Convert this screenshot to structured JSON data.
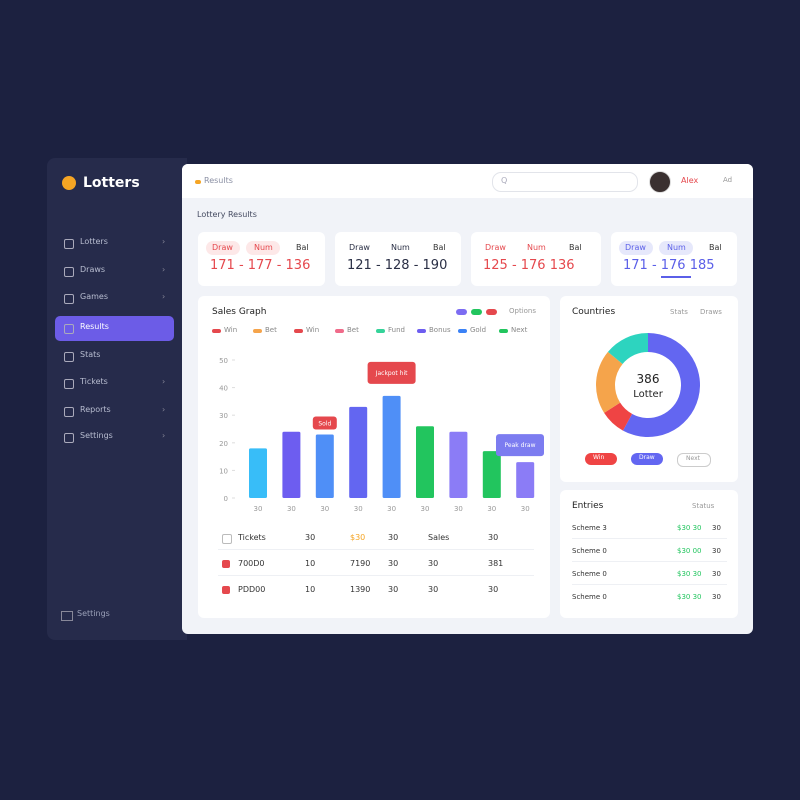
{
  "brand": "Lotters",
  "sidebar": {
    "items": [
      "Lotters",
      "Draws",
      "Games",
      "Results",
      "Stats",
      "Tickets",
      "Reports",
      "Settings"
    ],
    "active": 3,
    "footer": "Settings"
  },
  "header": {
    "breadcrumb": "Results",
    "search": "Q",
    "user": "Alex",
    "badge": "Ad"
  },
  "page_title": "Lottery Results",
  "stat_cards": [
    {
      "labels": [
        "Draw",
        "Num",
        "Bal"
      ],
      "value": "171 - 177 - 136",
      "color": "#e5484d"
    },
    {
      "labels": [
        "Draw",
        "Num",
        "Bal"
      ],
      "value": "121 - 128 - 190",
      "color": "#2a2f45"
    },
    {
      "labels": [
        "Draw",
        "Num",
        "Bal"
      ],
      "value": "125 - 176 136",
      "color": "#e5484d"
    },
    {
      "labels": [
        "Draw",
        "Num",
        "Bal"
      ],
      "value": "171 - 176 185",
      "color": "#5b5fe8"
    }
  ],
  "chart_data": {
    "type": "bar",
    "title": "Sales Graph",
    "options": "Options",
    "legend": [
      {
        "name": "Win",
        "color": "#e5484d"
      },
      {
        "name": "Bet",
        "color": "#f5a44b"
      },
      {
        "name": "Win",
        "color": "#e5484d"
      },
      {
        "name": "Bet",
        "color": "#f06b8a"
      },
      {
        "name": "Fund",
        "color": "#34d399"
      },
      {
        "name": "Bonus",
        "color": "#6d5df0"
      },
      {
        "name": "Gold",
        "color": "#3b82f6"
      },
      {
        "name": "Next",
        "color": "#22c55e"
      }
    ],
    "toggles": [
      "#7c6cf2",
      "#22c55e",
      "#e5484d"
    ],
    "categories": [
      "30",
      "30",
      "30",
      "30",
      "30",
      "30",
      "30",
      "30",
      "30"
    ],
    "values": [
      18,
      24,
      23,
      33,
      37,
      26,
      24,
      17,
      13
    ],
    "colors": [
      "#38bdf8",
      "#6d5df0",
      "#4f8ff7",
      "#6366f1",
      "#4f8ff7",
      "#22c55e",
      "#8b7cf6",
      "#22c55e",
      "#8b7cf6"
    ],
    "ylim": [
      0,
      50
    ],
    "yticks": [
      0,
      10,
      20,
      30,
      40,
      50
    ],
    "annotations": [
      {
        "text": "Jackpot hit",
        "index": 4,
        "color": "#e5484d"
      },
      {
        "text": "Sold",
        "index": 2,
        "color": "#e5484d"
      },
      {
        "text": "Peak draw",
        "index": 8,
        "color": "#7c7cf0"
      }
    ]
  },
  "table": {
    "rows": [
      [
        "Tickets",
        "30",
        "$30",
        "30",
        "Sales",
        "30"
      ],
      [
        "700D0",
        "10",
        "7190",
        "30",
        "30",
        "381"
      ],
      [
        "PDD00",
        "10",
        "1390",
        "30",
        "30",
        "30"
      ]
    ]
  },
  "donut": {
    "type": "pie",
    "title": "Countries",
    "links": [
      "Stats",
      "Draws"
    ],
    "center": "386",
    "center_label": "Lotter",
    "values": [
      58,
      8,
      20,
      14
    ],
    "colors": [
      "#6366f1",
      "#ef4444",
      "#f5a44b",
      "#2dd4bf"
    ],
    "buttons": [
      {
        "text": "Win",
        "color": "#ef4444"
      },
      {
        "text": "Draw",
        "color": "#6366f1"
      },
      {
        "text": "Next",
        "color": "#ffffff"
      }
    ]
  },
  "entries": {
    "title": "Entries",
    "status": "Status",
    "rows": [
      [
        "Scheme 3",
        "$30 30",
        "30"
      ],
      [
        "Scheme 0",
        "$30 00",
        "30"
      ],
      [
        "Scheme 0",
        "$30 30",
        "30"
      ],
      [
        "Scheme 0",
        "$30 30",
        "30"
      ]
    ]
  }
}
